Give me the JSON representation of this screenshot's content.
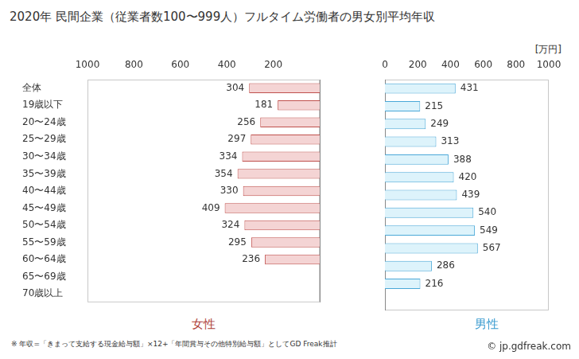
{
  "title": "2020年 民間企業（従業者数100〜999人）フルタイム労働者の男女別平均年収",
  "footnote": "※ 年収=「きまって支給する現金給与額」×12+「年間賞与その他特別給与額」としてGD Freak推計",
  "credit": "© jp.gdfreak.com",
  "chart_data": [
    {
      "type": "bar",
      "orientation": "horizontal",
      "categories": [
        "全体",
        "19歳以下",
        "20〜24歳",
        "25〜29歳",
        "30〜34歳",
        "35〜39歳",
        "40〜44歳",
        "45〜49歳",
        "50〜54歳",
        "55〜59歳",
        "60〜64歳",
        "65〜69歳",
        "70歳以上"
      ],
      "series": [
        {
          "name": "女性",
          "color": "#f4d4d4",
          "values": [
            304,
            181,
            256,
            297,
            334,
            354,
            330,
            409,
            324,
            295,
            236,
            null,
            null
          ]
        }
      ],
      "xlim": [
        1000,
        0
      ],
      "xticks": [
        1000,
        800,
        600,
        400,
        200
      ],
      "grid": false,
      "data_labels": true,
      "tick_labels": true
    },
    {
      "type": "bar",
      "orientation": "horizontal",
      "categories": [
        "全体",
        "19歳以下",
        "20〜24歳",
        "25〜29歳",
        "30〜34歳",
        "35〜39歳",
        "40〜44歳",
        "45〜49歳",
        "50〜54歳",
        "55〜59歳",
        "60〜64歳",
        "65〜69歳",
        "70歳以上"
      ],
      "series": [
        {
          "name": "男性",
          "color": "#ddf3fb",
          "values": [
            431,
            215,
            249,
            313,
            388,
            420,
            439,
            540,
            549,
            567,
            286,
            216,
            null
          ]
        }
      ],
      "xlim": [
        0,
        1000
      ],
      "xticks": [
        0,
        200,
        400,
        600,
        800,
        1000
      ],
      "xlabel": "[万円]",
      "grid": false,
      "data_labels": true,
      "tick_labels": "x"
    }
  ]
}
